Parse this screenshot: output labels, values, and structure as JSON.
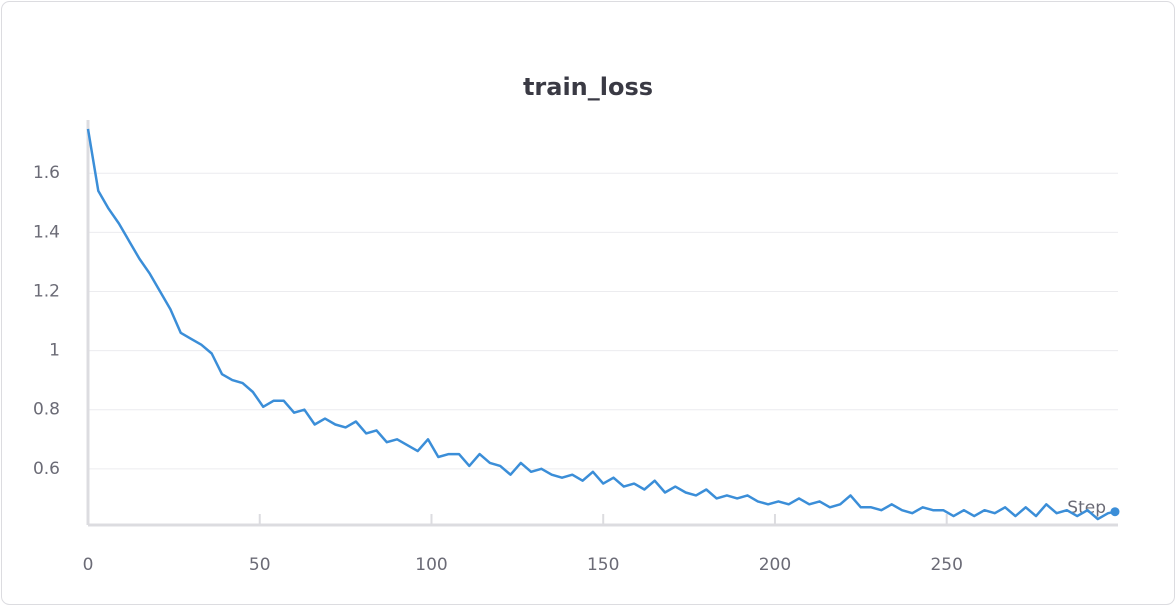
{
  "chart_data": {
    "type": "line",
    "title": "train_loss",
    "x_label": "Step",
    "color": "#3b8ed8",
    "x": [
      0,
      3,
      6,
      9,
      12,
      15,
      18,
      21,
      24,
      27,
      30,
      33,
      36,
      39,
      42,
      45,
      48,
      51,
      54,
      57,
      60,
      63,
      66,
      69,
      72,
      75,
      78,
      81,
      84,
      87,
      90,
      93,
      96,
      99,
      102,
      105,
      108,
      111,
      114,
      117,
      120,
      123,
      126,
      129,
      132,
      135,
      138,
      141,
      144,
      147,
      150,
      153,
      156,
      159,
      162,
      165,
      168,
      171,
      174,
      177,
      180,
      183,
      186,
      189,
      192,
      195,
      198,
      201,
      204,
      207,
      210,
      213,
      216,
      219,
      222,
      225,
      228,
      231,
      234,
      237,
      240,
      243,
      246,
      249,
      252,
      255,
      258,
      261,
      264,
      267,
      270,
      273,
      276,
      279,
      282,
      285,
      288,
      291,
      294,
      297,
      299
    ],
    "values": [
      1.75,
      1.54,
      1.48,
      1.43,
      1.37,
      1.31,
      1.26,
      1.2,
      1.14,
      1.06,
      1.04,
      1.02,
      0.99,
      0.92,
      0.9,
      0.89,
      0.86,
      0.81,
      0.83,
      0.83,
      0.79,
      0.8,
      0.75,
      0.77,
      0.75,
      0.74,
      0.76,
      0.72,
      0.73,
      0.69,
      0.7,
      0.68,
      0.66,
      0.7,
      0.64,
      0.65,
      0.65,
      0.61,
      0.65,
      0.62,
      0.61,
      0.58,
      0.62,
      0.59,
      0.6,
      0.58,
      0.57,
      0.58,
      0.56,
      0.59,
      0.55,
      0.57,
      0.54,
      0.55,
      0.53,
      0.56,
      0.52,
      0.54,
      0.52,
      0.51,
      0.53,
      0.5,
      0.51,
      0.5,
      0.51,
      0.49,
      0.48,
      0.49,
      0.48,
      0.5,
      0.48,
      0.49,
      0.47,
      0.48,
      0.51,
      0.47,
      0.47,
      0.46,
      0.48,
      0.46,
      0.45,
      0.47,
      0.46,
      0.46,
      0.44,
      0.46,
      0.44,
      0.46,
      0.45,
      0.47,
      0.44,
      0.47,
      0.44,
      0.48,
      0.45,
      0.46,
      0.44,
      0.46,
      0.43,
      0.45,
      0.455
    ],
    "xlim": [
      0,
      299
    ],
    "ylim": [
      0.41,
      1.78
    ],
    "xticks": [
      0,
      50,
      100,
      150,
      200,
      250
    ],
    "yticks": [
      0.6,
      0.8,
      1,
      1.2,
      1.4,
      1.6
    ],
    "grid": true
  }
}
